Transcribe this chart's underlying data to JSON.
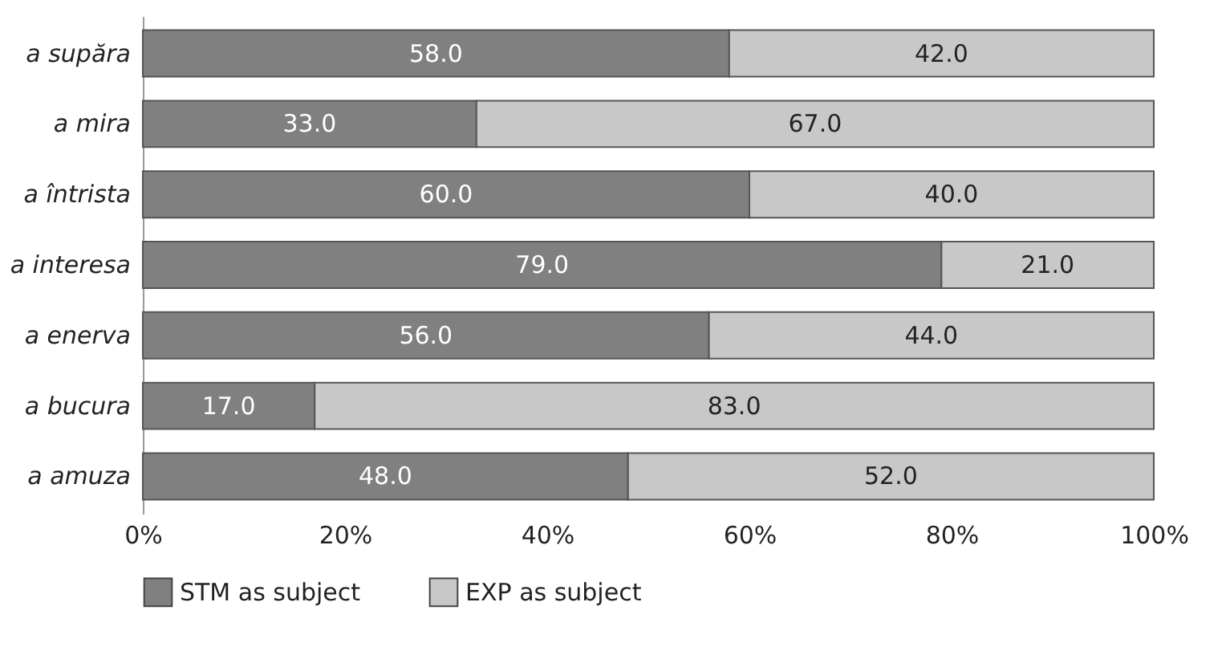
{
  "chart_data": {
    "type": "bar",
    "orientation": "horizontal",
    "stacked": true,
    "categories": [
      "a supăra",
      "a mira",
      "a întrista",
      "a interesa",
      "a enerva",
      "a bucura",
      "a amuza"
    ],
    "series": [
      {
        "name": "STM as subject",
        "color": "#808080",
        "values": [
          58,
          33,
          60,
          79,
          56,
          17,
          48
        ],
        "value_labels": [
          "58.0",
          "33.0",
          "60.0",
          "79.0",
          "56.0",
          "17.0",
          "48.0"
        ]
      },
      {
        "name": "EXP as subject",
        "color": "#c8c8c8",
        "values": [
          42,
          67,
          40,
          21,
          44,
          83,
          52
        ],
        "value_labels": [
          "42.0",
          "67.0",
          "40.0",
          "21.0",
          "44.0",
          "83.0",
          "52.0"
        ]
      }
    ],
    "xlim": [
      0,
      100
    ],
    "xticks": [
      {
        "value": 0,
        "label": "0%"
      },
      {
        "value": 20,
        "label": "20%"
      },
      {
        "value": 40,
        "label": "40%"
      },
      {
        "value": 60,
        "label": "60%"
      },
      {
        "value": 80,
        "label": "80%"
      },
      {
        "value": 100,
        "label": "100%"
      }
    ],
    "grid": false,
    "legend": "bottom"
  }
}
